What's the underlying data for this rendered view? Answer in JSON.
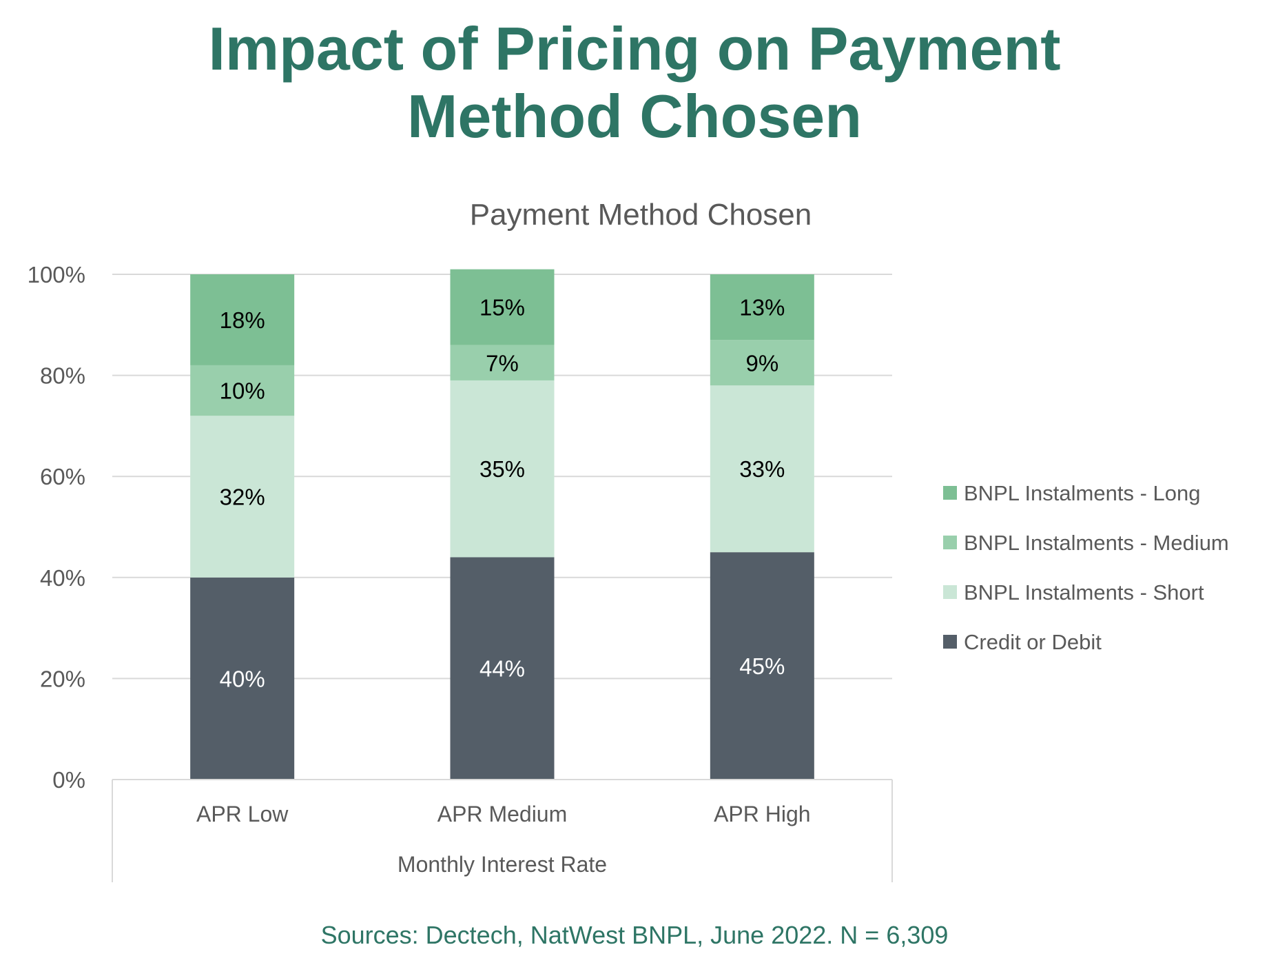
{
  "page": {
    "title_line1": "Impact of Pricing on Payment",
    "title_line2": "Method Chosen",
    "sources": "Sources: Dectech, NatWest BNPL, June 2022. N = 6,309"
  },
  "colors": {
    "title": "#2e7565",
    "credit": "#545e68",
    "short": "#cae6d6",
    "medium": "#99cfac",
    "long": "#7dbf94",
    "grid": "#d9d9d9",
    "text": "#595959"
  },
  "chart_data": {
    "type": "bar",
    "stacked": true,
    "title": "Payment Method Chosen",
    "xlabel": "Monthly Interest Rate",
    "ylabel": "",
    "ylim": [
      0,
      100
    ],
    "yticks": [
      "0%",
      "20%",
      "40%",
      "60%",
      "80%",
      "100%"
    ],
    "grid": true,
    "legend_position": "right",
    "categories": [
      "APR Low",
      "APR Medium",
      "APR High"
    ],
    "series": [
      {
        "name": "Credit or Debit",
        "values": [
          40,
          44,
          45
        ],
        "labels": [
          "40%",
          "44%",
          "45%"
        ],
        "color": "#545e68",
        "label_color": "#ffffff"
      },
      {
        "name": "BNPL Instalments - Short",
        "values": [
          32,
          35,
          33
        ],
        "labels": [
          "32%",
          "35%",
          "33%"
        ],
        "color": "#cae6d6",
        "label_color": "#000000"
      },
      {
        "name": "BNPL Instalments - Medium",
        "values": [
          10,
          7,
          9
        ],
        "labels": [
          "10%",
          "7%",
          "9%"
        ],
        "color": "#99cfac",
        "label_color": "#000000"
      },
      {
        "name": "BNPL Instalments - Long",
        "values": [
          18,
          15,
          13
        ],
        "labels": [
          "18%",
          "15%",
          "13%"
        ],
        "color": "#7dbf94",
        "label_color": "#000000"
      }
    ],
    "legend_order": [
      "BNPL Instalments - Long",
      "BNPL Instalments - Medium",
      "BNPL Instalments - Short",
      "Credit or Debit"
    ]
  }
}
